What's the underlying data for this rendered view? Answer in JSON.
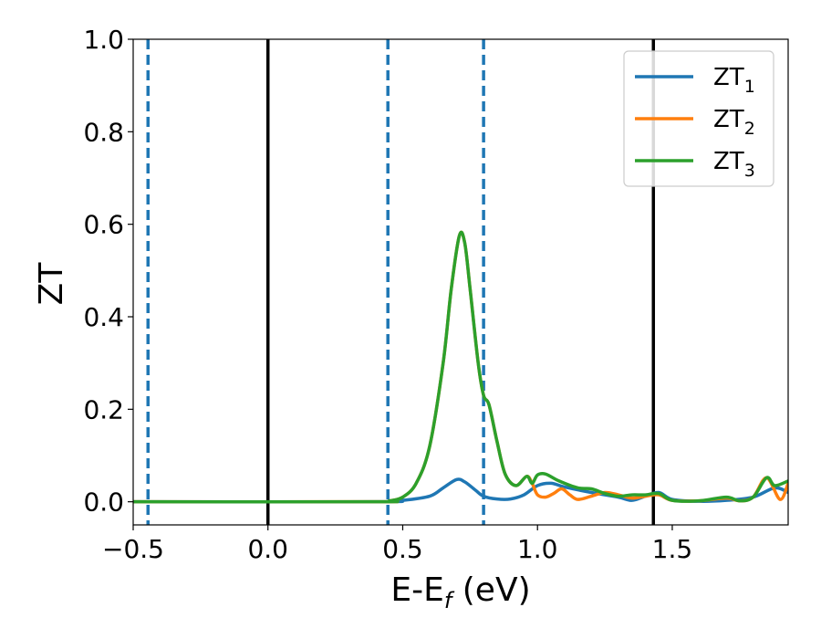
{
  "chart_data": {
    "type": "line",
    "xlabel_main": "E-E",
    "xlabel_sub": "f",
    "xlabel_unit": " (eV)",
    "ylabel": "ZT",
    "xlim": [
      -0.5,
      1.93
    ],
    "ylim": [
      -0.05,
      1.0
    ],
    "xticks": [
      -0.5,
      0.0,
      0.5,
      1.0,
      1.5
    ],
    "xtick_labels": [
      "−0.5",
      "0.0",
      "0.5",
      "1.0",
      "1.5"
    ],
    "yticks": [
      0.0,
      0.2,
      0.4,
      0.6,
      0.8,
      1.0
    ],
    "ytick_labels": [
      "0.0",
      "0.2",
      "0.4",
      "0.6",
      "0.8",
      "1.0"
    ],
    "grid": false,
    "legend_position": "top-right",
    "vlines": [
      {
        "x": -0.445,
        "style": "dashed",
        "color": "#1f77b4"
      },
      {
        "x": 0.0,
        "style": "solid",
        "color": "#000000"
      },
      {
        "x": 0.445,
        "style": "dashed",
        "color": "#1f77b4"
      },
      {
        "x": 0.8,
        "style": "dashed",
        "color": "#1f77b4"
      },
      {
        "x": 1.43,
        "style": "solid",
        "color": "#000000"
      }
    ],
    "series": [
      {
        "name": "ZT",
        "name_sub": "1",
        "color": "#1f77b4",
        "x": [
          -0.5,
          0.4,
          0.5,
          0.6,
          0.65,
          0.7,
          0.73,
          0.77,
          0.8,
          0.85,
          0.9,
          0.95,
          1.0,
          1.05,
          1.1,
          1.2,
          1.3,
          1.35,
          1.4,
          1.45,
          1.5,
          1.6,
          1.7,
          1.8,
          1.88,
          1.93
        ],
        "y": [
          0.0,
          0.0,
          0.003,
          0.012,
          0.03,
          0.048,
          0.043,
          0.025,
          0.012,
          0.006,
          0.006,
          0.015,
          0.035,
          0.04,
          0.032,
          0.02,
          0.01,
          0.003,
          0.012,
          0.02,
          0.005,
          0.001,
          0.003,
          0.01,
          0.03,
          0.02
        ]
      },
      {
        "name": "ZT",
        "name_sub": "2",
        "color": "#ff7f0e",
        "x": [
          -0.5,
          0.4,
          0.45,
          0.5,
          0.55,
          0.6,
          0.65,
          0.68,
          0.71,
          0.73,
          0.75,
          0.78,
          0.8,
          0.82,
          0.85,
          0.88,
          0.92,
          0.96,
          0.98,
          1.0,
          1.03,
          1.06,
          1.09,
          1.12,
          1.15,
          1.2,
          1.25,
          1.3,
          1.35,
          1.4,
          1.45,
          1.5,
          1.6,
          1.7,
          1.75,
          1.8,
          1.85,
          1.9,
          1.93
        ],
        "y": [
          0.0,
          0.0,
          0.002,
          0.01,
          0.04,
          0.12,
          0.3,
          0.46,
          0.575,
          0.56,
          0.46,
          0.3,
          0.23,
          0.21,
          0.13,
          0.06,
          0.035,
          0.055,
          0.04,
          0.015,
          0.01,
          0.018,
          0.028,
          0.015,
          0.005,
          0.012,
          0.02,
          0.015,
          0.008,
          0.012,
          0.015,
          0.003,
          0.002,
          0.008,
          0.002,
          0.01,
          0.052,
          0.005,
          0.04
        ]
      },
      {
        "name": "ZT",
        "name_sub": "3",
        "color": "#2ca02c",
        "x": [
          -0.5,
          0.4,
          0.45,
          0.5,
          0.55,
          0.6,
          0.65,
          0.68,
          0.71,
          0.73,
          0.75,
          0.78,
          0.8,
          0.82,
          0.85,
          0.88,
          0.92,
          0.96,
          0.98,
          1.0,
          1.03,
          1.08,
          1.15,
          1.2,
          1.25,
          1.3,
          1.35,
          1.4,
          1.45,
          1.5,
          1.6,
          1.7,
          1.75,
          1.8,
          1.85,
          1.88,
          1.93
        ],
        "y": [
          0.0,
          0.0,
          0.002,
          0.01,
          0.04,
          0.12,
          0.3,
          0.46,
          0.575,
          0.56,
          0.46,
          0.3,
          0.23,
          0.21,
          0.13,
          0.06,
          0.035,
          0.055,
          0.04,
          0.058,
          0.06,
          0.045,
          0.03,
          0.028,
          0.018,
          0.012,
          0.015,
          0.015,
          0.018,
          0.003,
          0.002,
          0.01,
          0.002,
          0.01,
          0.052,
          0.035,
          0.045
        ]
      }
    ]
  }
}
